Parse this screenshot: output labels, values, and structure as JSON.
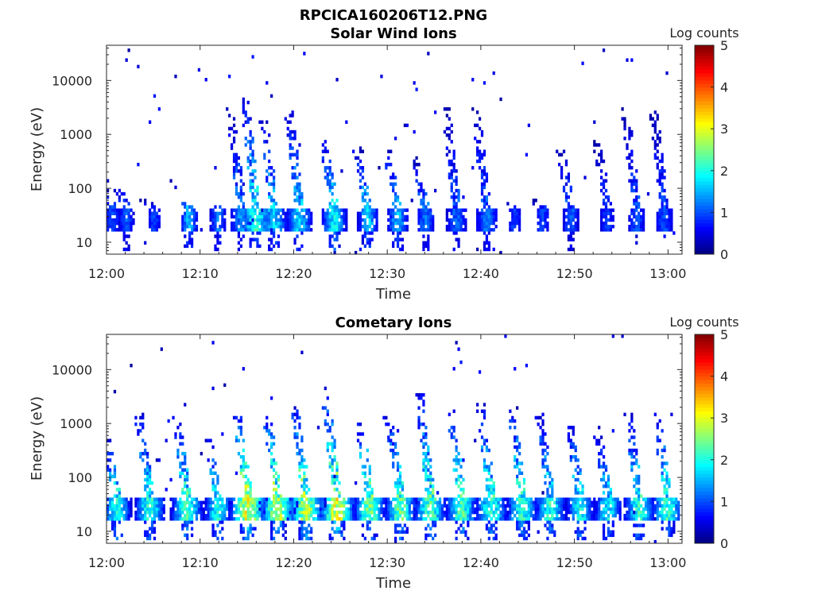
{
  "figure": {
    "suptitle": "RPCICA160206T12.PNG"
  },
  "colors": {
    "colormap": "jet",
    "axis": "#262626",
    "background": "#ffffff"
  },
  "chart_data": [
    {
      "type": "heatmap",
      "title": "Solar Wind Ions",
      "xlabel": "Time",
      "ylabel": "Energy (eV)",
      "y_scale": "log",
      "ylim": [
        6,
        45000
      ],
      "xlim_minutes": [
        0,
        61.5
      ],
      "x_ticks": [
        "12:00",
        "12:10",
        "12:20",
        "12:30",
        "12:40",
        "12:50",
        "13:00"
      ],
      "y_ticks": [
        "10",
        "100",
        "1000",
        "10000"
      ],
      "y_tick_values": [
        10,
        100,
        1000,
        10000
      ],
      "colorbar": {
        "label": "Log counts",
        "range": [
          0,
          5
        ],
        "ticks": [
          "0",
          "1",
          "2",
          "3",
          "4",
          "5"
        ]
      },
      "bursts": [
        {
          "t": 0.5,
          "level": 1.0,
          "emax": 200,
          "spread": 0.7
        },
        {
          "t": 2.0,
          "level": 1.2,
          "emax": 120,
          "spread": 0.6
        },
        {
          "t": 5.0,
          "level": 1.0,
          "emax": 60,
          "spread": 0.6
        },
        {
          "t": 8.7,
          "level": 1.6,
          "emax": 60,
          "spread": 0.6
        },
        {
          "t": 11.8,
          "level": 1.3,
          "emax": 50,
          "spread": 0.6
        },
        {
          "t": 14.3,
          "level": 1.4,
          "emax": 3000,
          "spread": 0.9
        },
        {
          "t": 15.8,
          "level": 2.2,
          "emax": 5000,
          "spread": 1.0
        },
        {
          "t": 17.8,
          "level": 1.8,
          "emax": 2000,
          "spread": 0.9
        },
        {
          "t": 20.5,
          "level": 1.8,
          "emax": 3000,
          "spread": 0.9
        },
        {
          "t": 24.2,
          "level": 2.0,
          "emax": 900,
          "spread": 0.8
        },
        {
          "t": 27.8,
          "level": 1.8,
          "emax": 600,
          "spread": 0.7
        },
        {
          "t": 31.0,
          "level": 1.7,
          "emax": 500,
          "spread": 0.7
        },
        {
          "t": 34.0,
          "level": 1.3,
          "emax": 400,
          "spread": 0.7
        },
        {
          "t": 37.3,
          "level": 1.2,
          "emax": 3000,
          "spread": 0.8
        },
        {
          "t": 40.5,
          "level": 1.3,
          "emax": 3000,
          "spread": 0.8
        },
        {
          "t": 43.5,
          "level": 1.0,
          "emax": 60,
          "spread": 0.6
        },
        {
          "t": 46.5,
          "level": 1.0,
          "emax": 60,
          "spread": 0.6
        },
        {
          "t": 49.5,
          "level": 1.2,
          "emax": 600,
          "spread": 0.6
        },
        {
          "t": 53.4,
          "level": 1.0,
          "emax": 800,
          "spread": 0.6
        },
        {
          "t": 56.5,
          "level": 1.1,
          "emax": 3000,
          "spread": 0.7
        },
        {
          "t": 59.5,
          "level": 1.1,
          "emax": 3000,
          "spread": 0.7
        }
      ]
    },
    {
      "type": "heatmap",
      "title": "Cometary Ions",
      "xlabel": "Time",
      "ylabel": "Energy (eV)",
      "y_scale": "log",
      "ylim": [
        6,
        45000
      ],
      "xlim_minutes": [
        0,
        61.5
      ],
      "x_ticks": [
        "12:00",
        "12:10",
        "12:20",
        "12:30",
        "12:40",
        "12:50",
        "13:00"
      ],
      "y_ticks": [
        "10",
        "100",
        "1000",
        "10000"
      ],
      "y_tick_values": [
        10,
        100,
        1000,
        10000
      ],
      "colorbar": {
        "label": "Log counts",
        "range": [
          0,
          5
        ],
        "ticks": [
          "0",
          "1",
          "2",
          "3",
          "4",
          "5"
        ]
      },
      "bursts": [
        {
          "t": 1.0,
          "level": 2.2,
          "emax": 500,
          "spread": 0.9
        },
        {
          "t": 4.5,
          "level": 2.2,
          "emax": 1500,
          "spread": 1.0
        },
        {
          "t": 8.5,
          "level": 2.4,
          "emax": 1300,
          "spread": 1.0
        },
        {
          "t": 11.8,
          "level": 2.1,
          "emax": 600,
          "spread": 0.9
        },
        {
          "t": 15.0,
          "level": 3.2,
          "emax": 1500,
          "spread": 1.1
        },
        {
          "t": 18.2,
          "level": 3.0,
          "emax": 1500,
          "spread": 1.1
        },
        {
          "t": 21.2,
          "level": 2.9,
          "emax": 2000,
          "spread": 1.1
        },
        {
          "t": 24.5,
          "level": 3.2,
          "emax": 3000,
          "spread": 1.1
        },
        {
          "t": 28.0,
          "level": 2.6,
          "emax": 1500,
          "spread": 1.0
        },
        {
          "t": 31.3,
          "level": 2.5,
          "emax": 1200,
          "spread": 1.0
        },
        {
          "t": 34.5,
          "level": 2.5,
          "emax": 3500,
          "spread": 1.0
        },
        {
          "t": 37.8,
          "level": 2.4,
          "emax": 2000,
          "spread": 1.0
        },
        {
          "t": 41.0,
          "level": 2.3,
          "emax": 2500,
          "spread": 1.0
        },
        {
          "t": 44.3,
          "level": 2.3,
          "emax": 2500,
          "spread": 1.0
        },
        {
          "t": 47.3,
          "level": 2.2,
          "emax": 1500,
          "spread": 1.0
        },
        {
          "t": 50.5,
          "level": 2.1,
          "emax": 1200,
          "spread": 0.9
        },
        {
          "t": 53.5,
          "level": 2.0,
          "emax": 700,
          "spread": 0.9
        },
        {
          "t": 56.8,
          "level": 2.2,
          "emax": 1500,
          "spread": 1.0
        },
        {
          "t": 59.8,
          "level": 2.3,
          "emax": 1500,
          "spread": 1.0
        }
      ]
    }
  ]
}
